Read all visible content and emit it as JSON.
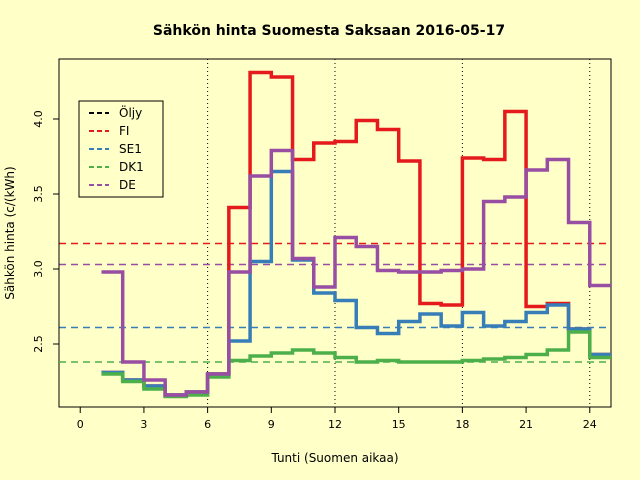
{
  "chart_data": {
    "type": "line",
    "step": true,
    "title": "Sähkön hinta Suomesta Saksaan 2016-05-17",
    "xlabel": "Tunti (Suomen aikaa)",
    "ylabel": "Sähkön hinta (c/(kWh)",
    "xlim": [
      -1,
      25
    ],
    "ylim": [
      2.08,
      4.4
    ],
    "xticks": [
      0,
      3,
      6,
      9,
      12,
      15,
      18,
      21,
      24
    ],
    "yticks": [
      2.5,
      3.0,
      3.5,
      4.0
    ],
    "vlines": [
      6,
      12,
      18,
      24
    ],
    "legend_position": "top-left",
    "legend": [
      {
        "label": "Öljy",
        "color": "#000000"
      },
      {
        "label": "FI",
        "color": "#E41A1C"
      },
      {
        "label": "SE1",
        "color": "#377EB8"
      },
      {
        "label": "DK1",
        "color": "#4DAF4A"
      },
      {
        "label": "DE",
        "color": "#984EA3"
      }
    ],
    "hlines": [
      {
        "label": "FI",
        "value": 3.17,
        "color": "#E41A1C"
      },
      {
        "label": "DE",
        "value": 3.03,
        "color": "#984EA3"
      },
      {
        "label": "SE1",
        "value": 2.61,
        "color": "#377EB8"
      },
      {
        "label": "DK1",
        "value": 2.38,
        "color": "#4DAF4A"
      }
    ],
    "x": [
      1,
      2,
      3,
      4,
      5,
      6,
      7,
      8,
      9,
      10,
      11,
      12,
      13,
      14,
      15,
      16,
      17,
      18,
      19,
      20,
      21,
      22,
      23,
      24,
      25
    ],
    "series": [
      {
        "name": "FI",
        "color": "#E41A1C",
        "values": [
          2.31,
          2.26,
          2.22,
          2.16,
          2.18,
          2.3,
          3.41,
          4.31,
          4.28,
          3.73,
          3.84,
          3.85,
          3.99,
          3.93,
          3.72,
          2.77,
          2.76,
          3.74,
          3.73,
          4.05,
          2.75,
          2.77,
          2.6,
          2.43,
          2.43
        ]
      },
      {
        "name": "SE1",
        "color": "#377EB8",
        "values": [
          2.31,
          2.26,
          2.22,
          2.16,
          2.18,
          2.3,
          2.52,
          3.05,
          3.65,
          3.06,
          2.84,
          2.79,
          2.61,
          2.57,
          2.65,
          2.7,
          2.62,
          2.71,
          2.62,
          2.65,
          2.71,
          2.76,
          2.6,
          2.43,
          2.43
        ]
      },
      {
        "name": "DK1",
        "color": "#4DAF4A",
        "values": [
          2.3,
          2.25,
          2.2,
          2.15,
          2.16,
          2.28,
          2.39,
          2.42,
          2.44,
          2.46,
          2.44,
          2.41,
          2.38,
          2.39,
          2.38,
          2.38,
          2.38,
          2.39,
          2.4,
          2.41,
          2.43,
          2.46,
          2.58,
          2.41,
          2.41
        ]
      },
      {
        "name": "DE",
        "color": "#984EA3",
        "values": [
          2.98,
          2.38,
          2.26,
          2.16,
          2.18,
          2.3,
          2.98,
          3.62,
          3.79,
          3.07,
          2.88,
          3.21,
          3.15,
          2.99,
          2.98,
          2.98,
          2.99,
          3.0,
          3.45,
          3.48,
          3.66,
          3.73,
          3.31,
          2.89,
          2.89
        ]
      }
    ]
  }
}
